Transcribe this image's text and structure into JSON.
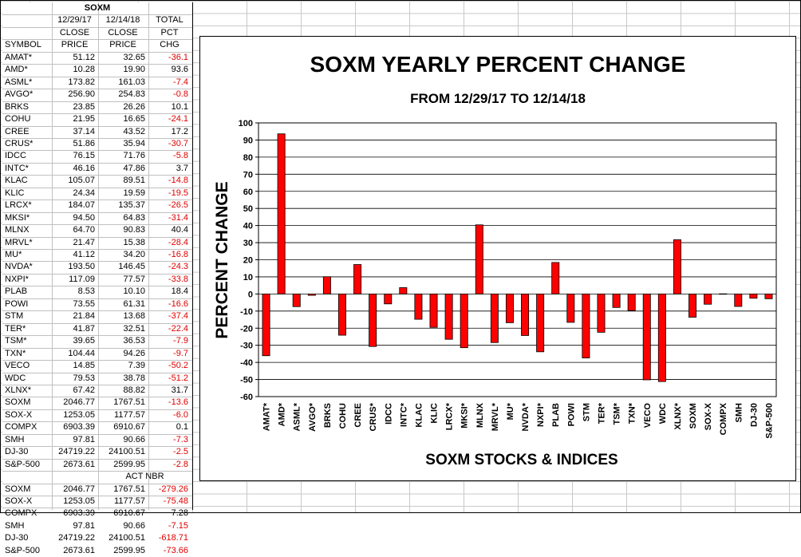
{
  "sheet": {
    "title": "SOXM",
    "headers": {
      "row1": [
        "",
        "12/29/17",
        "12/14/18",
        "TOTAL"
      ],
      "row2": [
        "",
        "CLOSE",
        "CLOSE",
        "PCT"
      ],
      "row3": [
        "SYMBOL",
        "PRICE",
        "PRICE",
        "CHG"
      ]
    },
    "rows": [
      [
        "AMAT*",
        "51.12",
        "32.65",
        "-36.1"
      ],
      [
        "AMD*",
        "10.28",
        "19.90",
        "93.6"
      ],
      [
        "ASML*",
        "173.82",
        "161.03",
        "-7.4"
      ],
      [
        "AVGO*",
        "256.90",
        "254.83",
        "-0.8"
      ],
      [
        "BRKS",
        "23.85",
        "26.26",
        "10.1"
      ],
      [
        "COHU",
        "21.95",
        "16.65",
        "-24.1"
      ],
      [
        "CREE",
        "37.14",
        "43.52",
        "17.2"
      ],
      [
        "CRUS*",
        "51.86",
        "35.94",
        "-30.7"
      ],
      [
        "IDCC",
        "76.15",
        "71.76",
        "-5.8"
      ],
      [
        "INTC*",
        "46.16",
        "47.86",
        "3.7"
      ],
      [
        "KLAC",
        "105.07",
        "89.51",
        "-14.8"
      ],
      [
        "KLIC",
        "24.34",
        "19.59",
        "-19.5"
      ],
      [
        "LRCX*",
        "184.07",
        "135.37",
        "-26.5"
      ],
      [
        "MKSI*",
        "94.50",
        "64.83",
        "-31.4"
      ],
      [
        "MLNX",
        "64.70",
        "90.83",
        "40.4"
      ],
      [
        "MRVL*",
        "21.47",
        "15.38",
        "-28.4"
      ],
      [
        "MU*",
        "41.12",
        "34.20",
        "-16.8"
      ],
      [
        "NVDA*",
        "193.50",
        "146.45",
        "-24.3"
      ],
      [
        "NXPI*",
        "117.09",
        "77.57",
        "-33.8"
      ],
      [
        "PLAB",
        "8.53",
        "10.10",
        "18.4"
      ],
      [
        "POWI",
        "73.55",
        "61.31",
        "-16.6"
      ],
      [
        "STM",
        "21.84",
        "13.68",
        "-37.4"
      ],
      [
        "TER*",
        "41.87",
        "32.51",
        "-22.4"
      ],
      [
        "TSM*",
        "39.65",
        "36.53",
        "-7.9"
      ],
      [
        "TXN*",
        "104.44",
        "94.26",
        "-9.7"
      ],
      [
        "VECO",
        "14.85",
        "7.39",
        "-50.2"
      ],
      [
        "WDC",
        "79.53",
        "38.78",
        "-51.2"
      ],
      [
        "XLNX*",
        "67.42",
        "88.82",
        "31.7"
      ],
      [
        "SOXM",
        "2046.77",
        "1767.51",
        "-13.6"
      ],
      [
        "SOX-X",
        "1253.05",
        "1177.57",
        "-6.0"
      ],
      [
        "COMPX",
        "6903.39",
        "6910.67",
        "0.1"
      ],
      [
        "SMH",
        "97.81",
        "90.66",
        "-7.3"
      ],
      [
        "DJ-30",
        "24719.22",
        "24100.51",
        "-2.5"
      ],
      [
        "S&P-500",
        "2673.61",
        "2599.95",
        "-2.8"
      ]
    ],
    "act_header": "ACT NBR",
    "act_rows": [
      [
        "SOXM",
        "2046.77",
        "1767.51",
        "-279.26"
      ],
      [
        "SOX-X",
        "1253.05",
        "1177.57",
        "-75.48"
      ],
      [
        "COMPX",
        "6903.39",
        "6910.67",
        "7.28"
      ],
      [
        "SMH",
        "97.81",
        "90.66",
        "-7.15"
      ],
      [
        "DJ-30",
        "24719.22",
        "24100.51",
        "-618.71"
      ],
      [
        "S&P-500",
        "2673.61",
        "2599.95",
        "-73.66"
      ]
    ]
  },
  "colors": {
    "bar": "#ff0000",
    "negative_text": "#e00000",
    "grid": "#c0c0c0"
  },
  "chart_data": {
    "type": "bar",
    "title": "SOXM YEARLY PERCENT CHANGE",
    "subtitle": "FROM 12/29/17 TO 12/14/18",
    "xlabel": "SOXM STOCKS & INDICES",
    "ylabel": "PERCENT CHANGE",
    "ylim": [
      -60,
      100
    ],
    "yticks": [
      -60,
      -50,
      -40,
      -30,
      -20,
      -10,
      0,
      10,
      20,
      30,
      40,
      50,
      60,
      70,
      80,
      90,
      100
    ],
    "grid": "horizontal",
    "categories": [
      "AMAT*",
      "AMD*",
      "ASML*",
      "AVGO*",
      "BRKS",
      "COHU",
      "CREE",
      "CRUS*",
      "IDCC",
      "INTC*",
      "KLAC",
      "KLIC",
      "LRCX*",
      "MKSI*",
      "MLNX",
      "MRVL*",
      "MU*",
      "NVDA*",
      "NXPI*",
      "PLAB",
      "POWI",
      "STM",
      "TER*",
      "TSM*",
      "TXN*",
      "VECO",
      "WDC",
      "XLNX*",
      "SOXM",
      "SOX-X",
      "COMPX",
      "SMH",
      "DJ-30",
      "S&P-500"
    ],
    "values": [
      -36.1,
      93.6,
      -7.4,
      -0.8,
      10.1,
      -24.1,
      17.2,
      -30.7,
      -5.8,
      3.7,
      -14.8,
      -19.5,
      -26.5,
      -31.4,
      40.4,
      -28.4,
      -16.8,
      -24.3,
      -33.8,
      18.4,
      -16.6,
      -37.4,
      -22.4,
      -7.9,
      -9.7,
      -50.2,
      -51.2,
      31.7,
      -13.6,
      -6.0,
      0.1,
      -7.3,
      -2.5,
      -2.8
    ]
  }
}
